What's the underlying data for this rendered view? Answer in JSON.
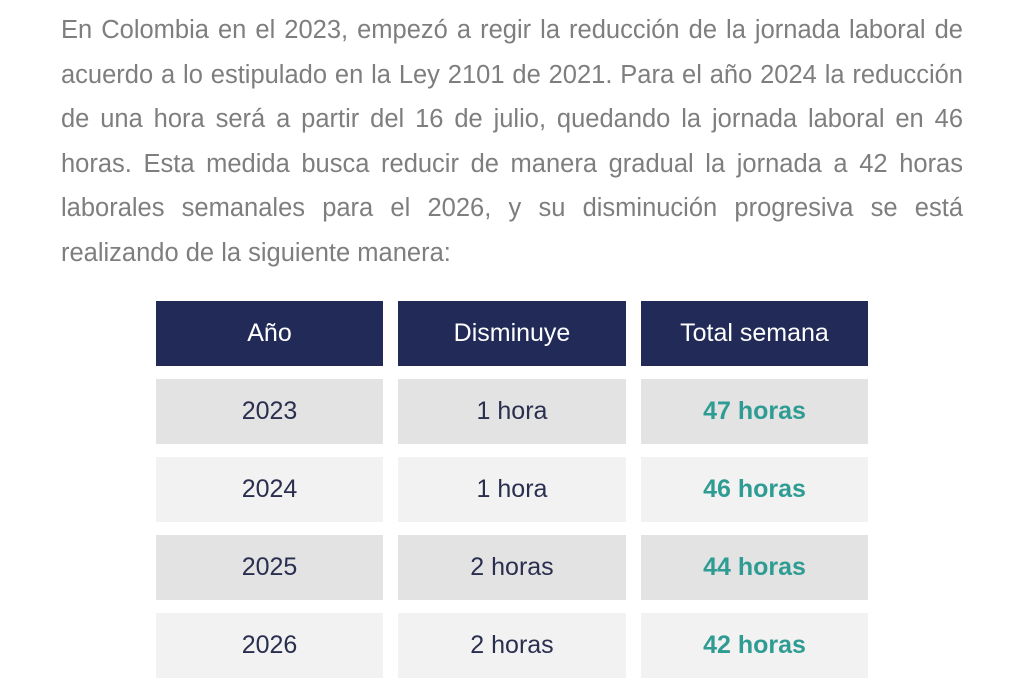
{
  "paragraph": "En Colombia en el 2023, empezó a regir la reducción de la jornada laboral de acuerdo a lo estipulado en la Ley 2101 de 2021. Para el año 2024 la reducción de una hora será a partir del 16 de julio, quedando la jornada laboral en 46 horas. Esta medida busca reducir de manera gradual la jornada a 42 horas laborales semanales para el 2026, y su disminución progresiva se está realizando de la siguiente manera:",
  "table": {
    "headers": [
      "Año",
      "Disminuye",
      "Total semana"
    ],
    "rows": [
      [
        "2023",
        "1 hora",
        "47 horas"
      ],
      [
        "2024",
        "1 hora",
        "46 horas"
      ],
      [
        "2025",
        "2 horas",
        "44 horas"
      ],
      [
        "2026",
        "2 horas",
        "42 horas"
      ]
    ]
  },
  "colors": {
    "header_bg": "#222b58",
    "accent": "#2f9c93",
    "body_text": "#7e7e7e"
  }
}
